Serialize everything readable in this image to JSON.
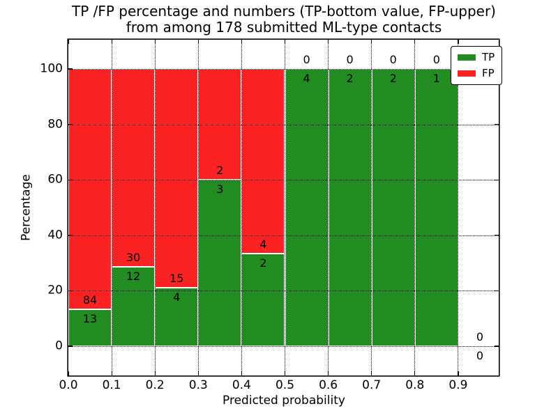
{
  "title": {
    "line1": "TP /FP percentage and numbers (TP-bottom value, FP-upper)",
    "line2": "from among 178 submitted ML-type contacts"
  },
  "colors": {
    "tp_green": "#228c22",
    "fp_red": "#fa2222",
    "bar_edge": "#ffffff",
    "grid": "#000000",
    "background": "#ffffff"
  },
  "legend": {
    "position": "upper right",
    "entries": [
      {
        "label": "TP",
        "color": "#228c22"
      },
      {
        "label": "FP",
        "color": "#fa2222"
      }
    ]
  },
  "chart_data": {
    "type": "bar",
    "subtype": "stacked-percentage-histogram",
    "title": "TP /FP percentage and numbers (TP-bottom value, FP-upper)\nfrom among 178 submitted ML-type contacts",
    "xlabel": "Predicted probability",
    "ylabel": "Percentage",
    "total_contacts": 178,
    "x_ticks": [
      "0.0",
      "0.1",
      "0.2",
      "0.3",
      "0.4",
      "0.5",
      "0.6",
      "0.7",
      "0.8",
      "0.9"
    ],
    "y_ticks": [
      0,
      20,
      40,
      60,
      80,
      100
    ],
    "xlim": [
      0.0,
      1.0
    ],
    "ylim": [
      -11,
      110
    ],
    "grid": true,
    "grid_style": "dotted",
    "bins": [
      {
        "x0": 0.0,
        "x1": 0.1,
        "tp": 13,
        "fp": 84,
        "tp_pct": 13.4
      },
      {
        "x0": 0.1,
        "x1": 0.2,
        "tp": 12,
        "fp": 30,
        "tp_pct": 28.6
      },
      {
        "x0": 0.2,
        "x1": 0.3,
        "tp": 4,
        "fp": 15,
        "tp_pct": 21.1
      },
      {
        "x0": 0.3,
        "x1": 0.4,
        "tp": 3,
        "fp": 2,
        "tp_pct": 60.0
      },
      {
        "x0": 0.4,
        "x1": 0.5,
        "tp": 2,
        "fp": 4,
        "tp_pct": 33.3
      },
      {
        "x0": 0.5,
        "x1": 0.6,
        "tp": 4,
        "fp": 0,
        "tp_pct": 100.0
      },
      {
        "x0": 0.6,
        "x1": 0.7,
        "tp": 2,
        "fp": 0,
        "tp_pct": 100.0
      },
      {
        "x0": 0.7,
        "x1": 0.8,
        "tp": 2,
        "fp": 0,
        "tp_pct": 100.0
      },
      {
        "x0": 0.8,
        "x1": 0.9,
        "tp": 1,
        "fp": 0,
        "tp_pct": 100.0
      },
      {
        "x0": 0.9,
        "x1": 1.0,
        "tp": 0,
        "fp": 0,
        "tp_pct": 0.0
      }
    ]
  }
}
